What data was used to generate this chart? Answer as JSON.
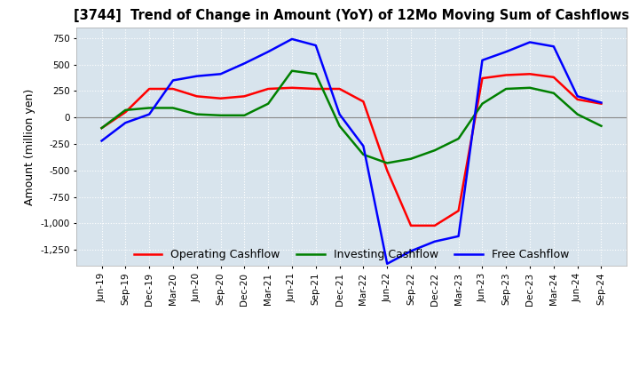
{
  "title": "[3744]  Trend of Change in Amount (YoY) of 12Mo Moving Sum of Cashflows",
  "ylabel": "Amount (million yen)",
  "ylim": [
    -1400,
    850
  ],
  "yticks": [
    750,
    500,
    250,
    0,
    -250,
    -500,
    -750,
    -1000,
    -1250
  ],
  "background_color": "#d8e4ed",
  "x_labels": [
    "Jun-19",
    "Sep-19",
    "Dec-19",
    "Mar-20",
    "Jun-20",
    "Sep-20",
    "Dec-20",
    "Mar-21",
    "Jun-21",
    "Sep-21",
    "Dec-21",
    "Mar-22",
    "Jun-22",
    "Sep-22",
    "Dec-22",
    "Mar-23",
    "Jun-23",
    "Sep-23",
    "Dec-23",
    "Mar-24",
    "Jun-24",
    "Sep-24"
  ],
  "operating": [
    -100,
    50,
    270,
    270,
    200,
    180,
    200,
    270,
    280,
    270,
    270,
    150,
    -500,
    -1020,
    -1020,
    -880,
    370,
    400,
    410,
    380,
    170,
    130
  ],
  "investing": [
    -100,
    70,
    90,
    90,
    30,
    20,
    20,
    130,
    440,
    410,
    -80,
    -350,
    -430,
    -390,
    -310,
    -200,
    130,
    270,
    280,
    230,
    30,
    -80
  ],
  "free": [
    -220,
    -50,
    30,
    350,
    390,
    410,
    510,
    620,
    740,
    680,
    30,
    -270,
    -1380,
    -1260,
    -1170,
    -1120,
    540,
    620,
    710,
    670,
    200,
    140
  ],
  "operating_color": "#ff0000",
  "investing_color": "#008000",
  "free_color": "#0000ff",
  "grid_color": "#ffffff",
  "legend_labels": [
    "Operating Cashflow",
    "Investing Cashflow",
    "Free Cashflow"
  ]
}
